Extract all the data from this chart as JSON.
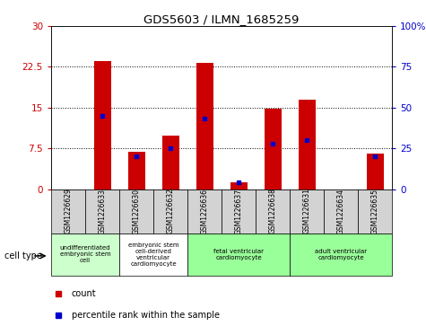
{
  "title": "GDS5603 / ILMN_1685259",
  "samples": [
    "GSM1226629",
    "GSM1226633",
    "GSM1226630",
    "GSM1226632",
    "GSM1226636",
    "GSM1226637",
    "GSM1226638",
    "GSM1226631",
    "GSM1226634",
    "GSM1226635"
  ],
  "counts": [
    0,
    23.5,
    6.8,
    9.8,
    23.3,
    1.2,
    14.8,
    16.5,
    0,
    6.5
  ],
  "percentiles": [
    0,
    45,
    20,
    25,
    43,
    4,
    28,
    30,
    0,
    20
  ],
  "ylim_left": [
    0,
    30
  ],
  "ylim_right": [
    0,
    100
  ],
  "yticks_left": [
    0,
    7.5,
    15,
    22.5,
    30
  ],
  "ytick_labels_left": [
    "0",
    "7.5",
    "15",
    "22.5",
    "30"
  ],
  "yticks_right": [
    0,
    25,
    50,
    75,
    100
  ],
  "ytick_labels_right": [
    "0",
    "25",
    "50",
    "75",
    "100%"
  ],
  "bar_color": "#cc0000",
  "blue_color": "#0000cc",
  "cell_types": [
    {
      "label": "undifferentiated\nembryonic stem\ncell",
      "start": 0,
      "end": 2,
      "color": "#ccffcc"
    },
    {
      "label": "embryonic stem\ncell-derived\nventricular\ncardiomyocyte",
      "start": 2,
      "end": 4,
      "color": "#ffffff"
    },
    {
      "label": "fetal ventricular\ncardiomyocyte",
      "start": 4,
      "end": 7,
      "color": "#99ff99"
    },
    {
      "label": "adult ventricular\ncardiomyocyte",
      "start": 7,
      "end": 10,
      "color": "#99ff99"
    }
  ],
  "cell_type_label": "cell type",
  "legend_count": "count",
  "legend_percentile": "percentile rank within the sample",
  "bar_width": 0.5,
  "tick_label_color_left": "#cc0000",
  "tick_label_color_right": "#0000cc",
  "bar_bg_color": "#d3d3d3",
  "n_samples": 10
}
